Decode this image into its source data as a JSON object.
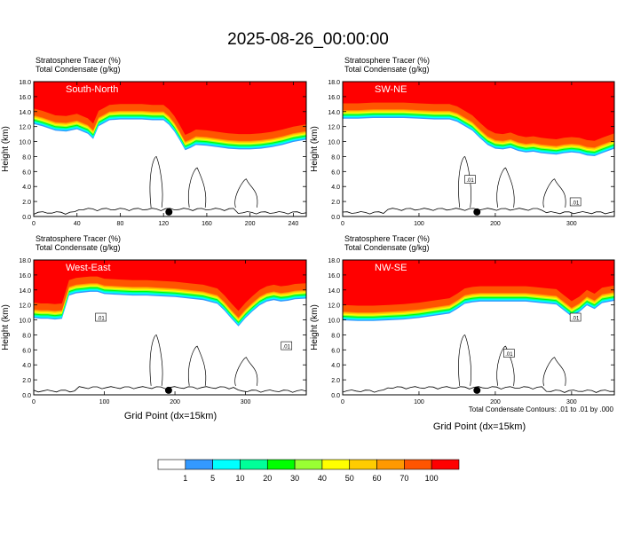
{
  "figure_title": "2025-08-26_00:00:00",
  "x_axis_label": "Grid Point (dx=15km)",
  "contour_note": "Total Condensate Contours: .01 to .01 by .000",
  "colors": {
    "tracer_levels": [
      "#ffffff",
      "#3399ff",
      "#00ffff",
      "#00ff99",
      "#00ff00",
      "#99ff33",
      "#ffff00",
      "#ffcc00",
      "#ff9900",
      "#ff5500",
      "#ff0000"
    ],
    "panel_label_text": "#ffffff",
    "contour": "#000000"
  },
  "colorbar": {
    "labels": [
      "1",
      "5",
      "10",
      "20",
      "30",
      "40",
      "50",
      "60",
      "70",
      "100"
    ]
  },
  "chart_data": [
    {
      "type": "contour",
      "panel_label": "South-North",
      "field_title_1": "Stratosphere Tracer   (%)",
      "field_title_2": "Total Condensate   (g/kg)",
      "ylabel": "Height (km)",
      "xlim": [
        0,
        252
      ],
      "ylim": [
        0,
        18
      ],
      "x_ticks": [
        "0",
        "40",
        "80",
        "120",
        "160",
        "200",
        "240"
      ],
      "y_ticks": [
        "0.0",
        "2.0",
        "4.0",
        "6.0",
        "8.0",
        "10.0",
        "12.0",
        "14.0",
        "16.0",
        "18.0"
      ],
      "contour_labels": [],
      "tropopause_profile": {
        "x": [
          0,
          8,
          20,
          30,
          40,
          50,
          55,
          60,
          65,
          70,
          80,
          90,
          100,
          110,
          120,
          125,
          130,
          135,
          140,
          145,
          150,
          160,
          170,
          180,
          190,
          200,
          210,
          220,
          230,
          240,
          252
        ],
        "y": [
          13.5,
          13.2,
          12.6,
          12.5,
          12.8,
          12.2,
          11.5,
          13.2,
          13.6,
          14.0,
          14.1,
          14.1,
          14.1,
          14.0,
          14.0,
          13.4,
          12.5,
          11.3,
          10.0,
          10.3,
          10.7,
          10.6,
          10.4,
          10.2,
          10.1,
          10.1,
          10.2,
          10.4,
          10.7,
          11.1,
          11.4
        ]
      },
      "surface_marker_x": 125
    },
    {
      "type": "contour",
      "panel_label": "SW-NE",
      "field_title_1": "Stratosphere Tracer   (%)",
      "field_title_2": "Total Condensate   (g/kg)",
      "ylabel": "Height (km)",
      "xlim": [
        0,
        356
      ],
      "ylim": [
        0,
        18
      ],
      "x_ticks": [
        "0",
        "100",
        "200",
        "300"
      ],
      "y_ticks": [
        "0.0",
        "2.0",
        "4.0",
        "6.0",
        "8.0",
        "10.0",
        "12.0",
        "14.0",
        "16.0",
        "18.0"
      ],
      "contour_labels": [
        ".01",
        ".01"
      ],
      "contour_label_x": [
        167,
        305
      ],
      "contour_label_y": [
        4.9,
        1.9
      ],
      "tropopause_profile": {
        "x": [
          0,
          20,
          40,
          60,
          80,
          100,
          120,
          140,
          150,
          160,
          170,
          180,
          190,
          200,
          210,
          220,
          230,
          240,
          250,
          260,
          270,
          280,
          290,
          300,
          310,
          320,
          330,
          340,
          356
        ],
        "y": [
          14.2,
          14.2,
          14.3,
          14.3,
          14.3,
          14.2,
          14.1,
          14.1,
          13.8,
          13.2,
          12.6,
          11.6,
          10.7,
          10.2,
          10.1,
          10.3,
          9.9,
          9.7,
          9.8,
          9.6,
          9.5,
          9.4,
          9.6,
          9.7,
          9.6,
          9.3,
          9.2,
          9.6,
          10.2
        ]
      },
      "surface_marker_x": 176
    },
    {
      "type": "contour",
      "panel_label": "West-East",
      "field_title_1": "Stratosphere Tracer   (%)",
      "field_title_2": "Total Condensate   (g/kg)",
      "ylabel": "Height (km)",
      "xlim": [
        0,
        386
      ],
      "ylim": [
        0,
        18
      ],
      "x_ticks": [
        "0",
        "100",
        "200",
        "300"
      ],
      "y_ticks": [
        "0.0",
        "2.0",
        "4.0",
        "6.0",
        "8.0",
        "10.0",
        "12.0",
        "14.0",
        "16.0",
        "18.0"
      ],
      "contour_labels": [
        ".01",
        ".01"
      ],
      "contour_label_x": [
        95,
        358
      ],
      "contour_label_y": [
        10.3,
        6.5
      ],
      "tropopause_profile": {
        "x": [
          0,
          10,
          20,
          30,
          40,
          50,
          60,
          70,
          80,
          90,
          100,
          120,
          140,
          160,
          180,
          200,
          220,
          240,
          260,
          270,
          280,
          290,
          300,
          310,
          320,
          330,
          340,
          350,
          360,
          370,
          386
        ],
        "y": [
          11.4,
          11.3,
          11.3,
          11.2,
          11.3,
          14.4,
          14.7,
          14.8,
          14.9,
          14.9,
          14.6,
          14.5,
          14.4,
          14.4,
          14.3,
          14.2,
          14.0,
          13.8,
          13.3,
          12.4,
          11.3,
          10.3,
          11.4,
          12.3,
          13.1,
          13.6,
          13.8,
          13.6,
          13.7,
          13.9,
          14.0
        ]
      },
      "surface_marker_x": 191
    },
    {
      "type": "contour",
      "panel_label": "NW-SE",
      "field_title_1": "Stratosphere Tracer   (%)",
      "field_title_2": "Total Condensate   (g/kg)",
      "ylabel": "Height (km)",
      "xlim": [
        0,
        356
      ],
      "ylim": [
        0,
        18
      ],
      "x_ticks": [
        "0",
        "100",
        "200",
        "300"
      ],
      "y_ticks": [
        "0.0",
        "2.0",
        "4.0",
        "6.0",
        "8.0",
        "10.0",
        "12.0",
        "14.0",
        "16.0",
        "18.0"
      ],
      "contour_labels": [
        ".01",
        ".01"
      ],
      "contour_label_x": [
        218,
        305
      ],
      "contour_label_y": [
        5.5,
        10.3
      ],
      "tropopause_profile": {
        "x": [
          0,
          20,
          40,
          60,
          80,
          100,
          120,
          140,
          150,
          160,
          170,
          180,
          190,
          200,
          210,
          220,
          230,
          240,
          250,
          260,
          270,
          280,
          290,
          300,
          310,
          320,
          330,
          340,
          356
        ],
        "y": [
          11.1,
          11.0,
          11.0,
          11.1,
          11.2,
          11.4,
          11.7,
          12.0,
          12.6,
          13.3,
          13.5,
          13.6,
          13.6,
          13.6,
          13.6,
          13.6,
          13.6,
          13.6,
          13.5,
          13.4,
          13.3,
          13.2,
          12.4,
          11.6,
          12.2,
          13.1,
          12.6,
          13.4,
          13.7
        ]
      },
      "surface_marker_x": 176
    }
  ]
}
